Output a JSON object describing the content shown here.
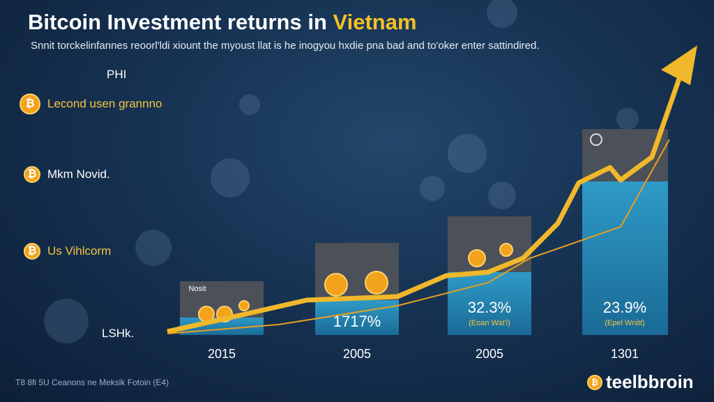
{
  "title": {
    "main": "Bitcoin Investment returns in ",
    "highlight": "Vietnam"
  },
  "subtitle": "Snnit torckelinfannes reoorl'ldi xiount the myoust llat is he inogyou hxdie pna bad and to'oker enter sattindired.",
  "axis_top": "PHI",
  "axis_bottom": "LSHk.",
  "legend": [
    "Lecond usen grannno",
    "Mkm Novid.",
    "Us Vihlcorm"
  ],
  "bars": [
    {
      "year": "2015",
      "note": "Nosit"
    },
    {
      "year": "2005",
      "label": "1717%"
    },
    {
      "year": "2005",
      "label": "32.3%",
      "sublabel": "(Eoan Wat'l)"
    },
    {
      "year": "1301",
      "label": "23.9%",
      "sublabel": "(Epel Wnitt)"
    }
  ],
  "footer": "T8 8fi 5U Ceanons ne Mekslk Fotoin (E4)",
  "brand": "teelbbroin"
}
